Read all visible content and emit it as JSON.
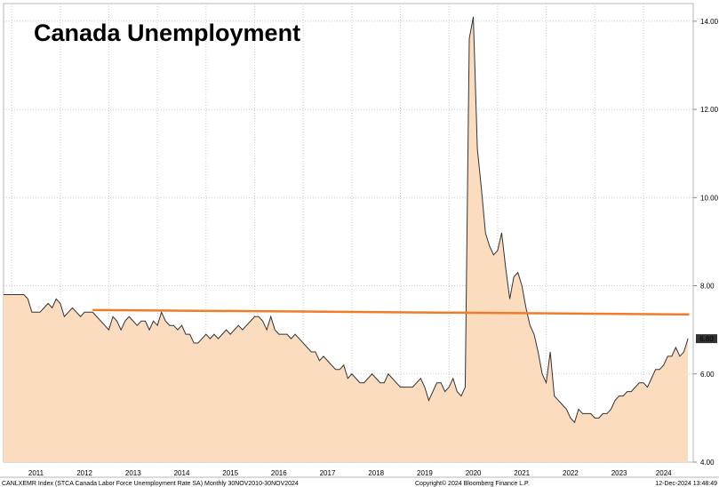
{
  "chart_data": {
    "type": "area",
    "title": "Canada Unemployment",
    "x_start": "2010-11",
    "x_end": "2024-11",
    "year_labels": [
      "2011",
      "2012",
      "2013",
      "2014",
      "2015",
      "2016",
      "2017",
      "2018",
      "2019",
      "2020",
      "2021",
      "2022",
      "2023",
      "2024"
    ],
    "y_ticks": [
      "4.00",
      "6.00",
      "8.00",
      "10.00",
      "12.00",
      "14.00"
    ],
    "ylim": [
      4.0,
      14.4
    ],
    "last_value_label": "6.80",
    "grid": true,
    "colors": {
      "area_fill": "#fcdcbf",
      "line": "#333333",
      "reference_line": "#f07c2a",
      "last_value_badge": "#333333",
      "grid": "#c8c8c8"
    },
    "series": [
      {
        "values": [
          7.8,
          7.8,
          7.8,
          7.8,
          7.8,
          7.8,
          7.7,
          7.4,
          7.4,
          7.4,
          7.5,
          7.6,
          7.5,
          7.7,
          7.6,
          7.3,
          7.4,
          7.5,
          7.4,
          7.3,
          7.4,
          7.4,
          7.4,
          7.3,
          7.2,
          7.1,
          7.0,
          7.3,
          7.2,
          7.0,
          7.2,
          7.3,
          7.2,
          7.1,
          7.2,
          7.2,
          7.0,
          7.2,
          7.1,
          7.4,
          7.2,
          7.1,
          7.1,
          7.0,
          7.1,
          6.9,
          6.9,
          6.7,
          6.7,
          6.8,
          6.9,
          6.8,
          6.9,
          6.8,
          6.9,
          7.0,
          6.9,
          7.0,
          7.1,
          7.0,
          7.1,
          7.2,
          7.3,
          7.3,
          7.2,
          7.0,
          7.3,
          7.0,
          6.9,
          6.9,
          6.9,
          6.8,
          6.9,
          6.8,
          6.7,
          6.6,
          6.5,
          6.5,
          6.3,
          6.4,
          6.3,
          6.2,
          6.1,
          6.1,
          6.2,
          5.9,
          6.0,
          5.9,
          5.8,
          5.8,
          5.9,
          6.0,
          5.9,
          5.8,
          5.8,
          6.0,
          5.9,
          5.8,
          5.7,
          5.7,
          5.7,
          5.7,
          5.8,
          5.9,
          5.7,
          5.4,
          5.6,
          5.8,
          5.8,
          5.6,
          5.7,
          5.9,
          5.6,
          5.5,
          5.7,
          13.6,
          14.1,
          11.1,
          10.2,
          9.2,
          8.9,
          8.7,
          8.8,
          9.2,
          8.4,
          7.7,
          8.2,
          8.3,
          8.0,
          7.5,
          7.1,
          6.9,
          6.5,
          6.0,
          5.8,
          6.5,
          5.5,
          5.4,
          5.3,
          5.2,
          5.0,
          4.9,
          5.2,
          5.1,
          5.1,
          5.1,
          5.0,
          5.0,
          5.1,
          5.1,
          5.2,
          5.4,
          5.5,
          5.5,
          5.6,
          5.6,
          5.7,
          5.8,
          5.8,
          5.7,
          5.9,
          6.1,
          6.1,
          6.2,
          6.4,
          6.4,
          6.6,
          6.4,
          6.5,
          6.8
        ]
      }
    ],
    "reference_line": {
      "start": "2012-09",
      "end": "2024-11",
      "y_start": 7.45,
      "y_end": 7.35
    },
    "footer": {
      "left": "CANLXEMR Index (STCA Canada Labor Force Unemployment Rate SA)  Monthly 30NOV2010-30NOV2024",
      "center": "Copyright© 2024 Bloomberg Finance L.P.",
      "right": "12-Dec-2024 13:48:49"
    }
  }
}
